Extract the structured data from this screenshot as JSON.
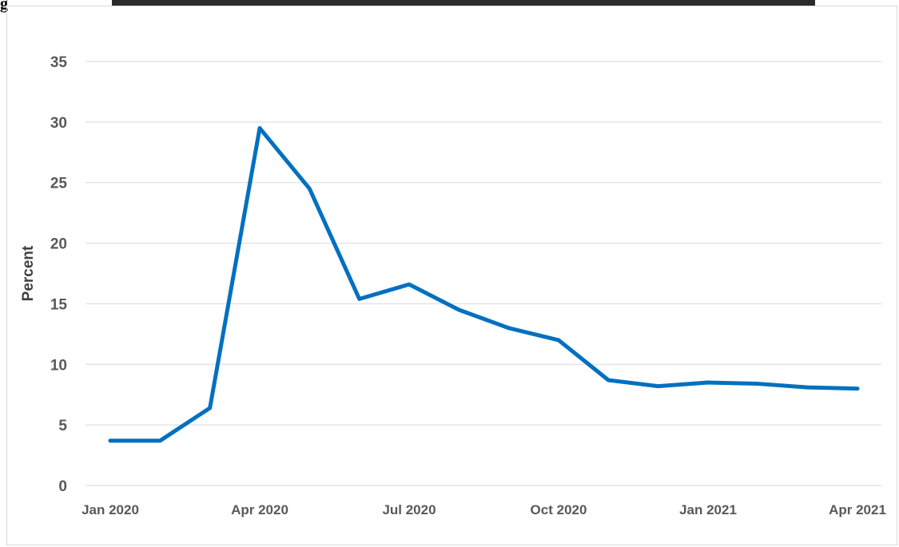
{
  "figure": {
    "label_fragment": "g"
  },
  "colors": {
    "line": "#0070c0",
    "grid": "#d9d9d9",
    "tick_text": "#595959",
    "header_bar": "#2b2b2b"
  },
  "chart_data": {
    "type": "line",
    "title": "",
    "xlabel": "",
    "ylabel": "Percent",
    "ylim": [
      0,
      35
    ],
    "yticks": [
      "0",
      "5",
      "10",
      "15",
      "20",
      "25",
      "30",
      "35"
    ],
    "grid": true,
    "legend": "none",
    "x_tick_labels": [
      "Jan 2020",
      "Apr 2020",
      "Jul 2020",
      "Oct 2020",
      "Jan 2021",
      "Apr 2021"
    ],
    "x": [
      "2020-01",
      "2020-02",
      "2020-03",
      "2020-04",
      "2020-05",
      "2020-06",
      "2020-07",
      "2020-08",
      "2020-09",
      "2020-10",
      "2020-11",
      "2020-12",
      "2021-01",
      "2021-02",
      "2021-03",
      "2021-04"
    ],
    "series": [
      {
        "values": [
          3.7,
          3.7,
          6.4,
          29.5,
          24.5,
          15.4,
          16.6,
          14.5,
          13.0,
          12.0,
          8.7,
          8.2,
          8.5,
          8.4,
          8.1,
          8.0
        ]
      }
    ]
  }
}
